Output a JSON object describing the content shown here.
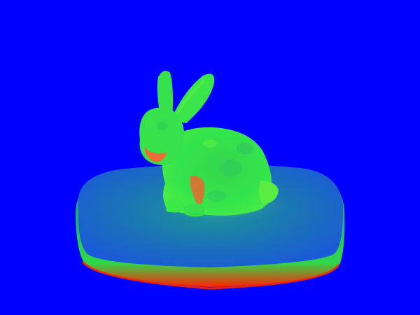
{
  "scene": {
    "subject": "bunny",
    "base": "rounded-slab",
    "shading": "false-color-heatmap"
  },
  "colors": {
    "background": "#0000ff",
    "base_top_center": "#1a7fb3",
    "base_top_edge": "#1b5fd9",
    "base_rim_green": "#2bd65a",
    "base_rim_red": "#ff1e00",
    "bunny_green": "#1fe93a",
    "bunny_yellow_green": "#6ef52b",
    "bunny_red": "#ff2a00"
  }
}
